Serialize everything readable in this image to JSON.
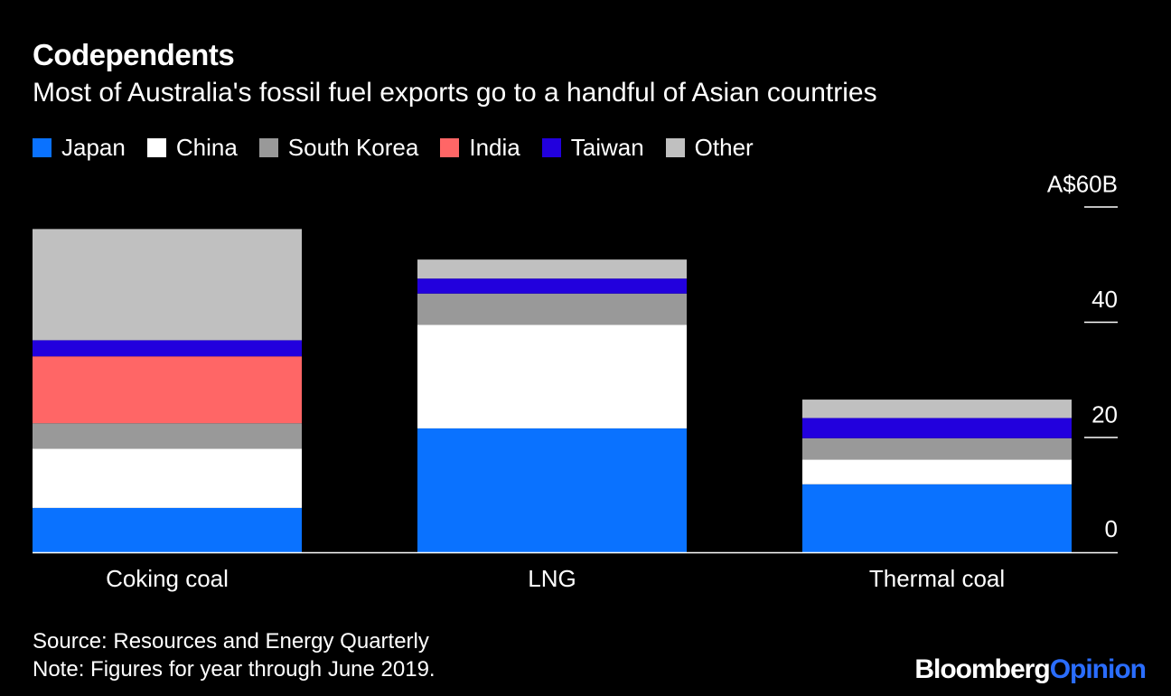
{
  "colors": {
    "background": "#000000",
    "axis": "#ffffff",
    "text": "#ffffff",
    "brand_accent": "#2a6dff"
  },
  "chart_data": {
    "type": "bar",
    "stacked": true,
    "title": "Codependents",
    "subtitle": "Most of Australia's fossil fuel exports go to a handful of Asian countries",
    "categories": [
      "Coking coal",
      "LNG",
      "Thermal coal"
    ],
    "series": [
      {
        "name": "Japan",
        "color": "#0a72ff",
        "values": [
          7.7,
          21.5,
          11.8
        ]
      },
      {
        "name": "China",
        "color": "#ffffff",
        "values": [
          10.3,
          18.0,
          4.3
        ]
      },
      {
        "name": "South Korea",
        "color": "#999999",
        "values": [
          4.4,
          5.4,
          3.7
        ]
      },
      {
        "name": "India",
        "color": "#ff6666",
        "values": [
          11.6,
          0,
          0
        ]
      },
      {
        "name": "Taiwan",
        "color": "#2200dd",
        "values": [
          2.8,
          2.6,
          3.5
        ]
      },
      {
        "name": "Other",
        "color": "#c0c0c0",
        "values": [
          19.3,
          3.3,
          3.2
        ]
      }
    ],
    "ylim": [
      0,
      60
    ],
    "yticks": [
      {
        "value": 0,
        "label": "0"
      },
      {
        "value": 20,
        "label": "20"
      },
      {
        "value": 40,
        "label": "40"
      },
      {
        "value": 60,
        "label": "A$60B"
      }
    ],
    "axis_position": "right",
    "legend_position": "top-left",
    "grid": false
  },
  "footer": {
    "source": "Source: Resources and Energy Quarterly",
    "note": "Note: Figures for year through June 2019."
  },
  "brand": {
    "part1": "Bloomberg",
    "part2": "Opinion"
  }
}
